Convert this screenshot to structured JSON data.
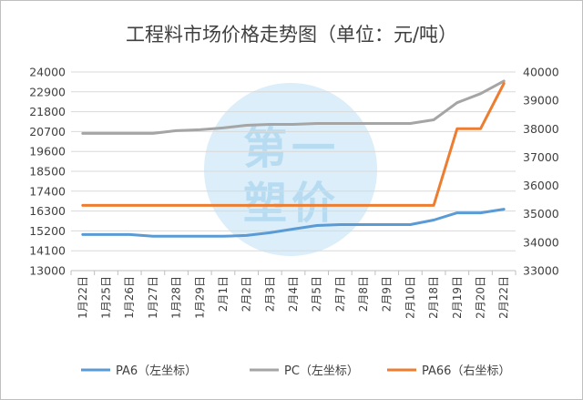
{
  "chart_data": {
    "type": "line",
    "title": "工程料市场价格走势图（单位：元/吨）",
    "categories": [
      "1月22日",
      "1月25日",
      "1月26日",
      "1月27日",
      "1月28日",
      "1月29日",
      "2月1日",
      "2月2日",
      "2月3日",
      "2月4日",
      "2月5日",
      "2月7日",
      "2月8日",
      "2月9日",
      "2月10日",
      "2月18日",
      "2月19日",
      "2月20日",
      "2月22日"
    ],
    "y_left": {
      "ticks": [
        13000,
        14100,
        15200,
        16300,
        17400,
        18500,
        19600,
        20700,
        21800,
        22900,
        24000
      ],
      "ylim": [
        13000,
        24000
      ]
    },
    "y_right": {
      "ticks": [
        33000,
        34000,
        35000,
        36000,
        37000,
        38000,
        39000,
        40000
      ],
      "ylim": [
        33000,
        40000
      ]
    },
    "grid": true,
    "legend_position": "bottom",
    "series": [
      {
        "name": "PA6（左坐标）",
        "axis": "left",
        "color": "#5b9bd5",
        "values": [
          15000,
          15000,
          15000,
          14900,
          14900,
          14900,
          14900,
          14950,
          15100,
          15300,
          15500,
          15550,
          15550,
          15550,
          15550,
          15800,
          16200,
          16200,
          16400
        ]
      },
      {
        "name": "PC（左坐标）",
        "axis": "left",
        "color": "#a5a5a5",
        "values": [
          20600,
          20600,
          20600,
          20600,
          20750,
          20800,
          20900,
          21050,
          21100,
          21100,
          21150,
          21150,
          21150,
          21150,
          21150,
          21350,
          22300,
          22800,
          23500
        ]
      },
      {
        "name": "PA66（右坐标）",
        "axis": "right",
        "color": "#ed7d31",
        "values": [
          35300,
          35300,
          35300,
          35300,
          35300,
          35300,
          35300,
          35300,
          35300,
          35300,
          35300,
          35300,
          35300,
          35300,
          35300,
          35300,
          38000,
          38000,
          39600
        ]
      }
    ]
  },
  "watermark": {
    "chars": [
      "第",
      "一",
      "塑",
      "价"
    ]
  }
}
